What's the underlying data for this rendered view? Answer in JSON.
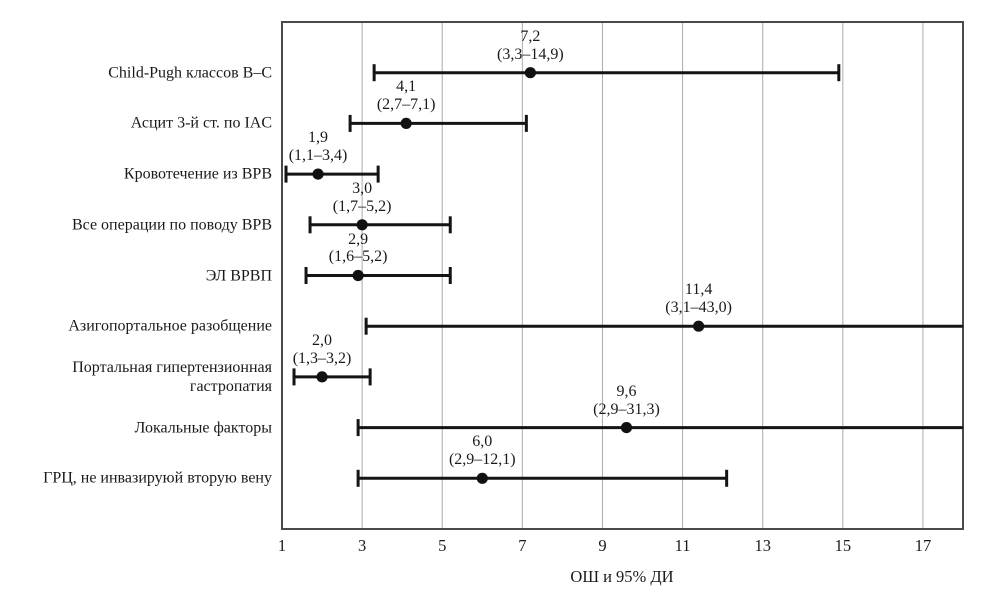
{
  "chart_data": {
    "type": "scatter",
    "subtype": "forest-plot-odds-ratios",
    "title": "",
    "xlabel": "ОШ и 95% ДИ",
    "ylabel": "",
    "xlim": [
      1,
      18
    ],
    "xtick_values": [
      1,
      3,
      5,
      7,
      9,
      11,
      13,
      15,
      17
    ],
    "xticks": [
      "1",
      "3",
      "5",
      "7",
      "9",
      "11",
      "13",
      "15",
      "17"
    ],
    "grid": true,
    "legend": false,
    "rows": [
      {
        "label": "Child-Pugh классов B–C",
        "or": 7.2,
        "ci_low": 3.3,
        "ci_high": 14.9,
        "or_label": "7,2",
        "ci_label": "(3,3–14,9)"
      },
      {
        "label": "Асцит 3-й ст. по IAC",
        "or": 4.1,
        "ci_low": 2.7,
        "ci_high": 7.1,
        "or_label": "4,1",
        "ci_label": "(2,7–7,1)"
      },
      {
        "label": "Кровотечение из ВРВ",
        "or": 1.9,
        "ci_low": 1.1,
        "ci_high": 3.4,
        "or_label": "1,9",
        "ci_label": "(1,1–3,4)"
      },
      {
        "label": "Все операции по поводу ВРВ",
        "or": 3.0,
        "ci_low": 1.7,
        "ci_high": 5.2,
        "or_label": "3,0",
        "ci_label": "(1,7–5,2)"
      },
      {
        "label": "ЭЛ ВРВП",
        "or": 2.9,
        "ci_low": 1.6,
        "ci_high": 5.2,
        "or_label": "2,9",
        "ci_label": "(1,6–5,2)"
      },
      {
        "label": "Азигопортальное разобщение",
        "or": 11.4,
        "ci_low": 3.1,
        "ci_high": 43.0,
        "or_label": "11,4",
        "ci_label": "(3,1–43,0)"
      },
      {
        "label": "Портальная гипертензионная гастропатия",
        "or": 2.0,
        "ci_low": 1.3,
        "ci_high": 3.2,
        "or_label": "2,0",
        "ci_label": "(1,3–3,2)"
      },
      {
        "label": "Локальные факторы",
        "or": 9.6,
        "ci_low": 2.9,
        "ci_high": 31.3,
        "or_label": "9,6",
        "ci_label": "(2,9–31,3)"
      },
      {
        "label": "ГРЦ, не инвазируюй вторую вену",
        "or": 6.0,
        "ci_low": 2.9,
        "ci_high": 12.1,
        "or_label": "6,0",
        "ci_label": "(2,9–12,1)"
      }
    ],
    "colors": {
      "marker": "#111111",
      "line": "#141414",
      "grid": "#ababab",
      "border": "#4a4a4a",
      "text": "#1a1a1a",
      "background": "#ffffff"
    }
  }
}
